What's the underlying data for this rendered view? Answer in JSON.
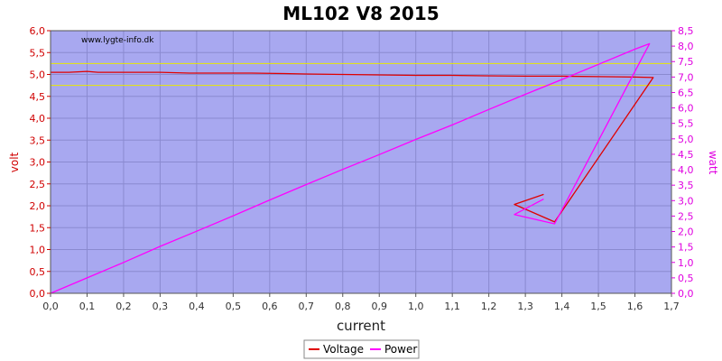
{
  "chart_data": {
    "type": "line",
    "title": "ML102 V8 2015",
    "watermark": "www.lygte-info.dk",
    "xlabel": "current",
    "ylabel_left": "volt",
    "ylabel_right": "watt",
    "xlim": [
      0.0,
      1.7
    ],
    "ylim_left": [
      0.0,
      6.0
    ],
    "ylim_right": [
      0.0,
      8.5
    ],
    "x_ticks": [
      "0,0",
      "0,1",
      "0,2",
      "0,3",
      "0,4",
      "0,5",
      "0,6",
      "0,7",
      "0,8",
      "0,9",
      "1,0",
      "1,1",
      "1,2",
      "1,3",
      "1,4",
      "1,5",
      "1,6",
      "1,7"
    ],
    "y_left_ticks": [
      "0,0",
      "0,5",
      "1,0",
      "1,5",
      "2,0",
      "2,5",
      "3,0",
      "3,5",
      "4,0",
      "4,5",
      "5,0",
      "5,5",
      "6,0"
    ],
    "y_right_ticks": [
      "0,0",
      "0,5",
      "1,0",
      "1,5",
      "2,0",
      "2,5",
      "3,0",
      "3,5",
      "4,0",
      "4,5",
      "5,0",
      "5,5",
      "6,0",
      "6,5",
      "7,0",
      "7,5",
      "8,0",
      "8,5"
    ],
    "reference_lines_volt": [
      5.25,
      4.75
    ],
    "grid": true,
    "legend_position": "bottom-center",
    "series": [
      {
        "name": "Voltage",
        "axis": "left",
        "color": "#e00000",
        "x": [
          0.0,
          0.05,
          0.1,
          0.13,
          0.2,
          0.3,
          0.38,
          0.45,
          0.55,
          0.64,
          0.7,
          0.8,
          0.9,
          1.0,
          1.1,
          1.19,
          1.3,
          1.4,
          1.5,
          1.6,
          1.65,
          1.38,
          1.27,
          1.35
        ],
        "y": [
          5.05,
          5.05,
          5.07,
          5.05,
          5.05,
          5.05,
          5.03,
          5.03,
          5.03,
          5.02,
          5.01,
          5.0,
          4.99,
          4.98,
          4.98,
          4.97,
          4.96,
          4.96,
          4.95,
          4.94,
          4.93,
          1.63,
          2.03,
          2.26
        ]
      },
      {
        "name": "Power",
        "axis": "right",
        "color": "#ff00ff",
        "x": [
          0.0,
          0.1,
          0.2,
          0.3,
          0.4,
          0.5,
          0.6,
          0.7,
          0.8,
          0.9,
          1.0,
          1.1,
          1.2,
          1.3,
          1.4,
          1.5,
          1.6,
          1.64,
          1.38,
          1.27,
          1.35
        ],
        "y": [
          0.0,
          0.5,
          1.0,
          1.52,
          2.01,
          2.51,
          3.02,
          3.52,
          4.01,
          4.49,
          4.98,
          5.45,
          5.95,
          6.44,
          6.92,
          7.41,
          7.9,
          8.08,
          2.25,
          2.55,
          3.05
        ]
      }
    ]
  }
}
